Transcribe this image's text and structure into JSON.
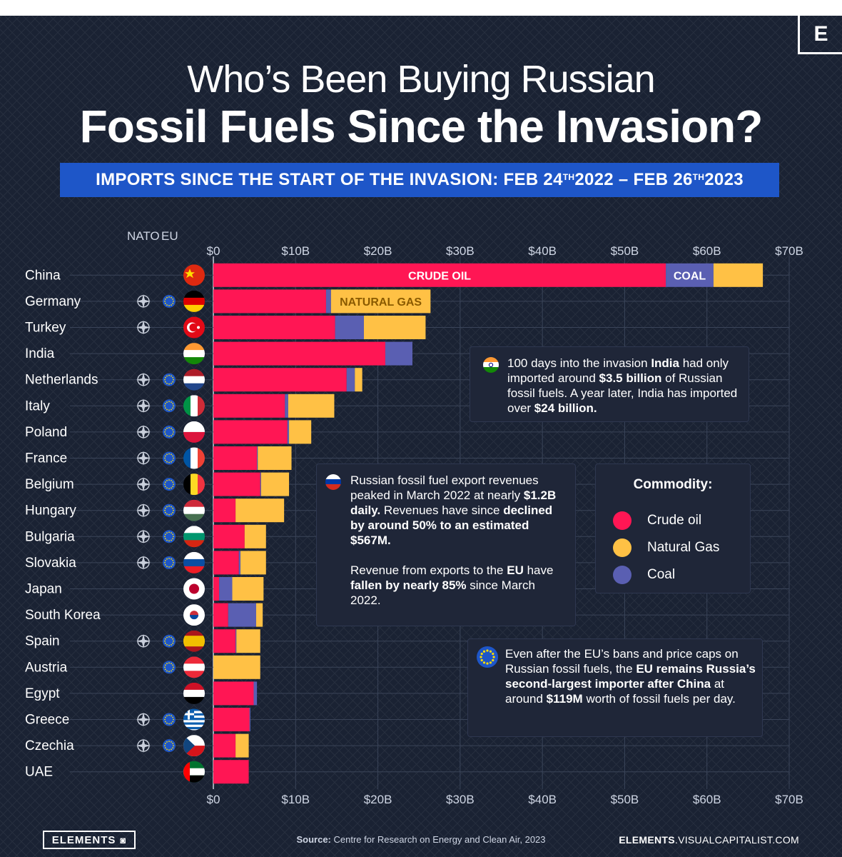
{
  "header": {
    "logo_letter": "E",
    "title_line1": "Who’s Been Buying Russian",
    "title_line2": "Fossil Fuels Since the Invasion?",
    "subtitle_pre": "IMPORTS SINCE THE START OF THE INVASION:  FEB 24",
    "subtitle_sup1": "TH",
    "subtitle_mid": " 2022 – FEB 26",
    "subtitle_sup2": "TH",
    "subtitle_post": " 2023"
  },
  "column_headers": {
    "nato": "NATO",
    "eu": "EU"
  },
  "colors": {
    "crude_oil": "#ff1654",
    "natural_gas": "#ffc145",
    "coal": "#5a5fb2",
    "background": "#1a2233",
    "band": "#1e56c8"
  },
  "bar_labels": {
    "crude_oil": "CRUDE OIL",
    "coal": "COAL",
    "natural_gas": "NATURAL GAS"
  },
  "chart_data": {
    "type": "bar",
    "orientation": "horizontal",
    "stacked": true,
    "categories": [
      "China",
      "Germany",
      "Turkey",
      "India",
      "Netherlands",
      "Italy",
      "Poland",
      "France",
      "Belgium",
      "Hungary",
      "Bulgaria",
      "Slovakia",
      "Japan",
      "South Korea",
      "Spain",
      "Austria",
      "Egypt",
      "Greece",
      "Czechia",
      "UAE"
    ],
    "series": [
      {
        "name": "Crude oil",
        "color": "#ff1654",
        "values": [
          55.0,
          13.7,
          14.8,
          20.9,
          16.2,
          8.7,
          9.0,
          5.3,
          5.7,
          2.7,
          3.8,
          3.1,
          0.7,
          1.8,
          2.7,
          0,
          4.9,
          4.4,
          2.7,
          4.3
        ]
      },
      {
        "name": "Natural Gas",
        "color": "#ffc145",
        "values": [
          6.0,
          12.1,
          7.5,
          0,
          0.9,
          5.6,
          2.7,
          4.1,
          3.4,
          5.9,
          2.6,
          3.1,
          3.8,
          0.8,
          2.9,
          5.7,
          0,
          0,
          1.6,
          0
        ]
      },
      {
        "name": "Coal",
        "color": "#5a5fb2",
        "values": [
          5.8,
          0.6,
          3.5,
          3.3,
          1.0,
          0.4,
          0.2,
          0.1,
          0.1,
          0,
          0,
          0.2,
          1.6,
          3.4,
          0.1,
          0,
          0.4,
          0.1,
          0,
          0
        ]
      }
    ],
    "stack_order": [
      "Crude oil",
      "Coal",
      "Natural Gas"
    ],
    "xlim": [
      0,
      70
    ],
    "ticks": [
      "$0",
      "$10B",
      "$20B",
      "$30B",
      "$40B",
      "$50B",
      "$60B",
      "$70B"
    ],
    "tick_values": [
      0,
      10,
      20,
      30,
      40,
      50,
      60,
      70
    ],
    "membership": {
      "nato": [
        "Germany",
        "Turkey",
        "Netherlands",
        "Italy",
        "Poland",
        "France",
        "Belgium",
        "Hungary",
        "Bulgaria",
        "Slovakia",
        "Spain",
        "Greece",
        "Czechia"
      ],
      "eu": [
        "Germany",
        "Netherlands",
        "Italy",
        "Poland",
        "France",
        "Belgium",
        "Hungary",
        "Bulgaria",
        "Slovakia",
        "Spain",
        "Austria",
        "Greece",
        "Czechia"
      ]
    },
    "grid": true,
    "legend_position": "right"
  },
  "legend": {
    "title": "Commodity:",
    "items": [
      {
        "label": "Crude oil",
        "color": "#ff1654"
      },
      {
        "label": "Natural Gas",
        "color": "#ffc145"
      },
      {
        "label": "Coal",
        "color": "#5a5fb2"
      }
    ]
  },
  "notes": {
    "india": {
      "t1": "100 days into the invasion ",
      "b1": "India",
      "t2": " had only imported around ",
      "b2": "$3.5 billion",
      "t3": " of Russian fossil fuels. A year later, India has imported over ",
      "b3": "$24 billion."
    },
    "russia": {
      "t1": "Russian fossil fuel export revenues peaked in March 2022 at nearly ",
      "b1": "$1.2B daily.",
      "t2": " Revenues have since ",
      "b2": "declined by around 50% to an estimated $567M.",
      "p2_t1": "Revenue from exports to the ",
      "p2_b1": "EU",
      "p2_t2": " have ",
      "p2_b2": "fallen by nearly 85%",
      "p2_t3": " since March 2022."
    },
    "eu": {
      "t1": "Even after the EU’s bans and price caps on Russian fossil fuels, the ",
      "b1": "EU remains Russia’s second-largest importer after China",
      "t2": " at around ",
      "b2": "$119M",
      "t3": " worth of fossil fuels per day."
    }
  },
  "footer": {
    "brand": "ELEMENTS",
    "source_label": "Source:",
    "source_text": " Centre for Research on Energy and Clean Air, 2023",
    "site_bold": "ELEMENTS",
    "site_rest": ".VISUALCAPITALIST.COM"
  }
}
